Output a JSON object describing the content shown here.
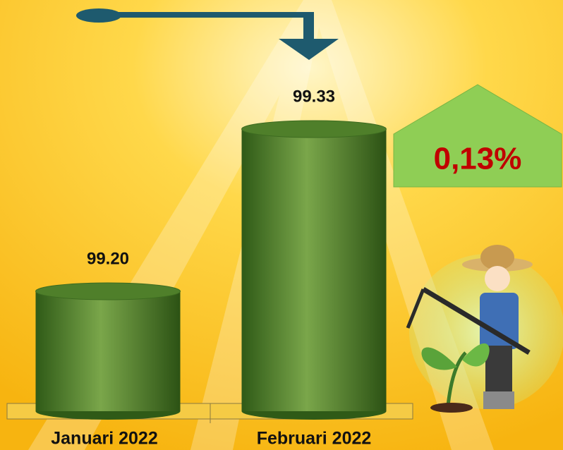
{
  "chart_data": {
    "type": "bar",
    "categories": [
      "Januari 2022",
      "Februari 2022"
    ],
    "values": [
      99.2,
      99.33
    ],
    "value_labels": [
      "99.20",
      "99.33"
    ],
    "annotation": "0,13%",
    "color": "#4f7f2a"
  }
}
